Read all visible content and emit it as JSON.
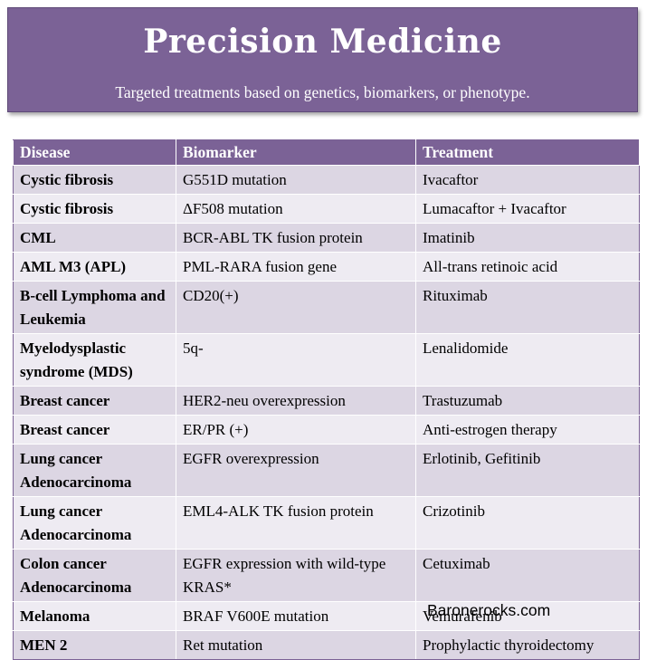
{
  "banner": {
    "title": "Precision Medicine",
    "subtitle": "Targeted treatments based on genetics, biomarkers, or phenotype."
  },
  "table": {
    "headers": [
      "Disease",
      "Biomarker",
      "Treatment"
    ],
    "rows": [
      {
        "disease": "Cystic fibrosis",
        "biomarker": "G551D mutation",
        "treatment": "Ivacaftor"
      },
      {
        "disease": "Cystic fibrosis",
        "biomarker": "ΔF508 mutation",
        "treatment": "Lumacaftor + Ivacaftor"
      },
      {
        "disease": "CML",
        "biomarker": "BCR-ABL TK fusion protein",
        "treatment": "Imatinib"
      },
      {
        "disease": "AML M3 (APL)",
        "biomarker": "PML-RARA fusion gene",
        "treatment": "All-trans retinoic acid"
      },
      {
        "disease": "B-cell Lymphoma and Leukemia",
        "biomarker": "CD20(+)",
        "treatment": "Rituximab"
      },
      {
        "disease": "Myelodysplastic syndrome (MDS)",
        "biomarker": "5q-",
        "treatment": "Lenalidomide"
      },
      {
        "disease": "Breast cancer",
        "biomarker": "HER2-neu overexpression",
        "treatment": "Trastuzumab"
      },
      {
        "disease": "Breast cancer",
        "biomarker": "ER/PR (+)",
        "treatment": "Anti-estrogen therapy"
      },
      {
        "disease": "Lung cancer Adenocarcinoma",
        "biomarker": "EGFR overexpression",
        "treatment": "Erlotinib, Gefitinib"
      },
      {
        "disease": "Lung cancer Adenocarcinoma",
        "biomarker": "EML4-ALK TK fusion protein",
        "treatment": "Crizotinib"
      },
      {
        "disease": "Colon cancer Adenocarcinoma",
        "biomarker": "EGFR expression with wild-type KRAS*",
        "treatment": "Cetuximab"
      },
      {
        "disease": "Melanoma",
        "biomarker": "BRAF V600E mutation",
        "treatment": "Vemurafenib"
      },
      {
        "disease": "MEN 2",
        "biomarker": "Ret mutation",
        "treatment": "Prophylactic thyroidectomy"
      }
    ]
  },
  "footer": {
    "credit": "Baronerocks.com"
  },
  "colors": {
    "purple": "#7b6296",
    "row_dark": "#dcd6e3",
    "row_light": "#eeebf2"
  }
}
